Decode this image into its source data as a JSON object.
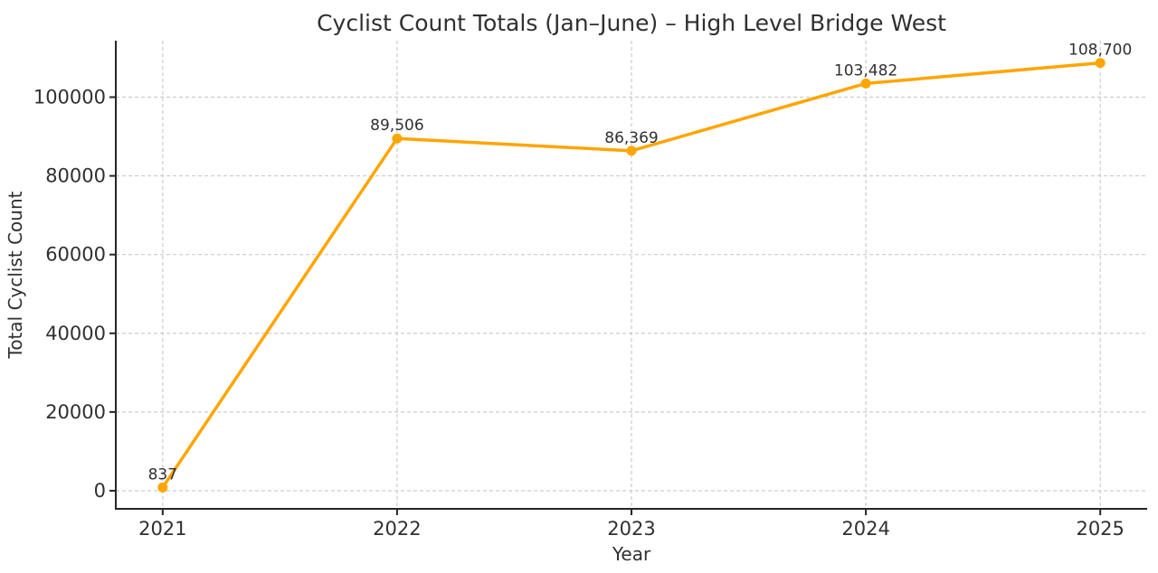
{
  "chart_data": {
    "type": "line",
    "title": "Cyclist Count Totals (Jan–June) – High Level Bridge West",
    "xlabel": "Year",
    "ylabel": "Total Cyclist Count",
    "x": [
      2021,
      2022,
      2023,
      2024,
      2025
    ],
    "values": [
      837,
      89506,
      86369,
      103482,
      108700
    ],
    "point_labels": [
      "837",
      "89,506",
      "86,369",
      "103,482",
      "108,700"
    ],
    "xtick_labels": [
      "2021",
      "2022",
      "2023",
      "2024",
      "2025"
    ],
    "xticks": [
      2021,
      2022,
      2023,
      2024,
      2025
    ],
    "ytick_labels": [
      "0",
      "20000",
      "40000",
      "60000",
      "80000",
      "100000"
    ],
    "yticks": [
      0,
      20000,
      40000,
      60000,
      80000,
      100000
    ],
    "xlim": [
      2020.8,
      2025.2
    ],
    "ylim": [
      -4600,
      114350
    ],
    "grid": true,
    "grid_style": "dashed",
    "legend": "none",
    "line_color": "#FFA500",
    "marker_color": "#FFA500",
    "grid_color": "#cccccc",
    "axis_color": "#262626",
    "text_color": "#303030",
    "background_color": "#ffffff"
  }
}
